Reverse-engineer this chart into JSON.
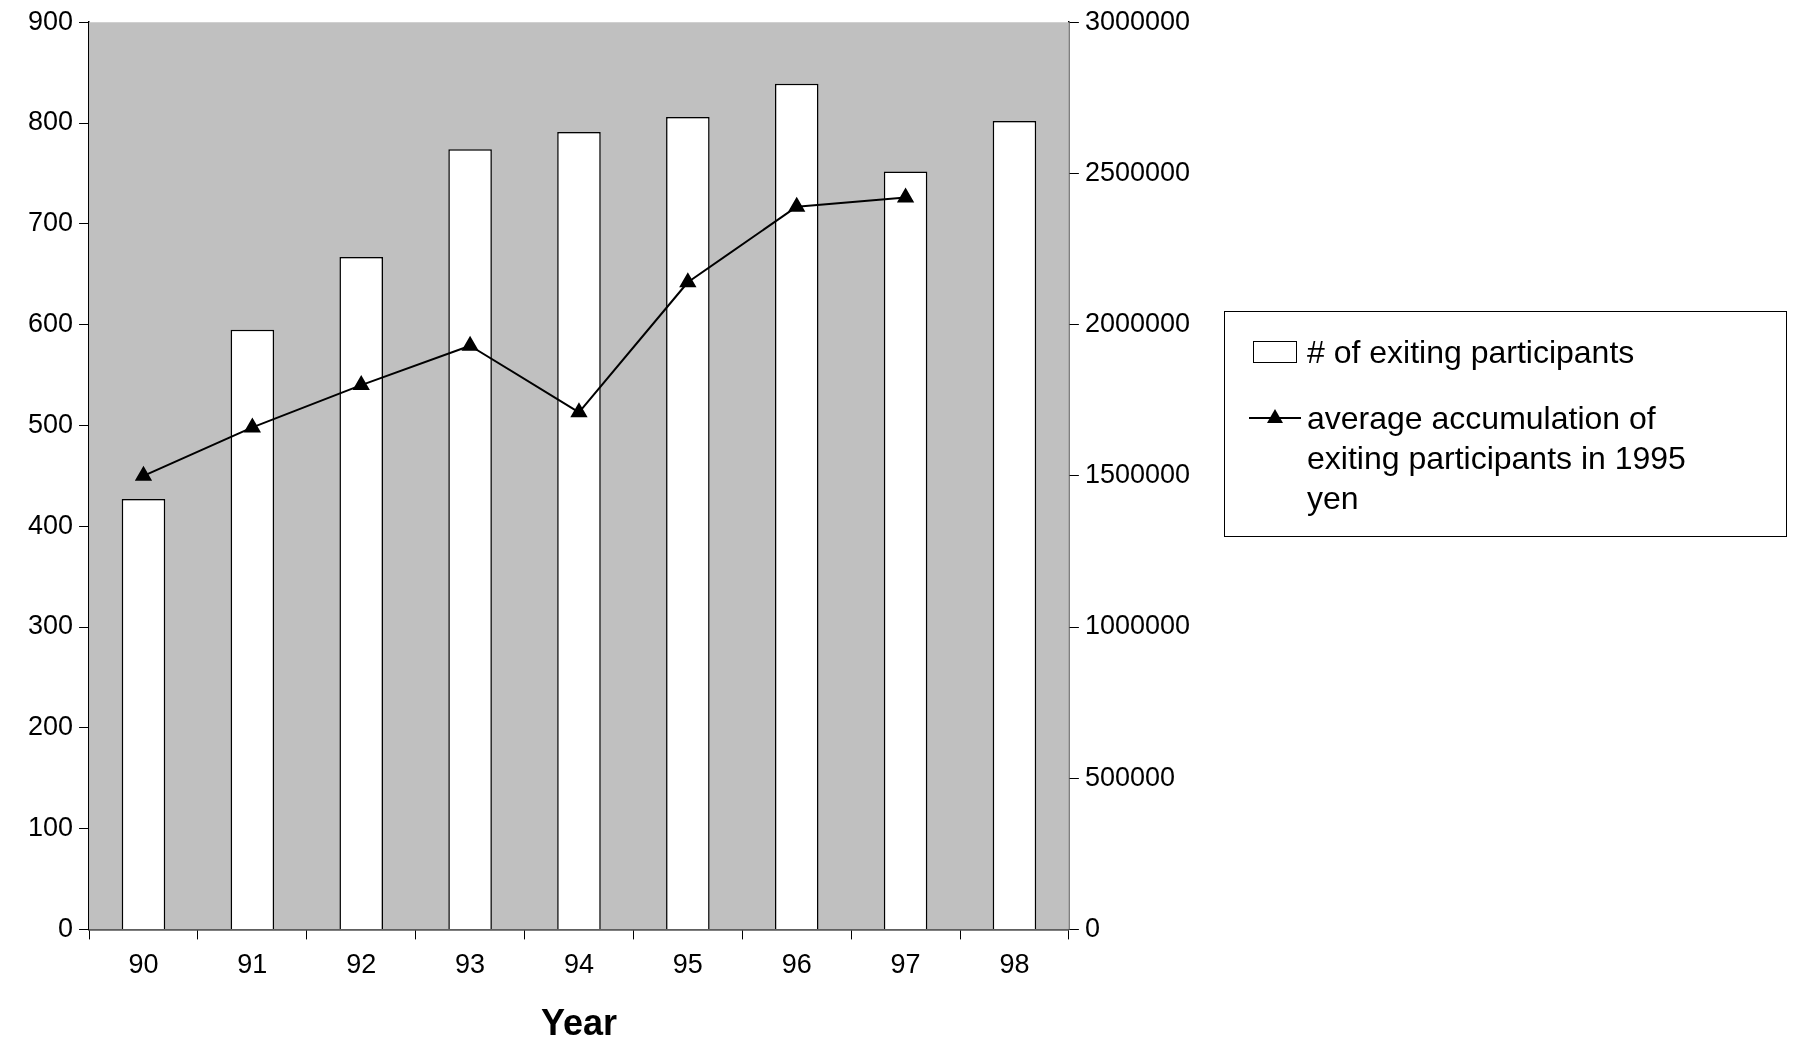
{
  "chart_data": {
    "type": "bar",
    "xlabel": "Year",
    "categories": [
      "90",
      "91",
      "92",
      "93",
      "94",
      "95",
      "96",
      "97",
      "98"
    ],
    "series": [
      {
        "name": "# of exiting participants",
        "color": "#ffffff",
        "values": [
          427,
          595,
          667,
          774,
          791,
          806,
          839,
          752,
          802
        ]
      },
      {
        "name": "average accumulation of exiting participants in 1995 yen",
        "type": "line",
        "axis": "y2",
        "color": "#000000",
        "values": [
          1500000,
          1660000,
          1800000,
          1930000,
          1710000,
          2140000,
          2390000,
          2420000,
          null
        ]
      }
    ],
    "ylim": [
      0,
      900
    ],
    "yticks": [
      0,
      100,
      200,
      300,
      400,
      500,
      600,
      700,
      800,
      900
    ],
    "y2lim": [
      0,
      3000000
    ],
    "y2ticks": [
      0,
      500000,
      1000000,
      1500000,
      2000000,
      2500000,
      3000000
    ],
    "grid": false,
    "legend": "right",
    "marker": "triangle",
    "line_style": "solid"
  }
}
